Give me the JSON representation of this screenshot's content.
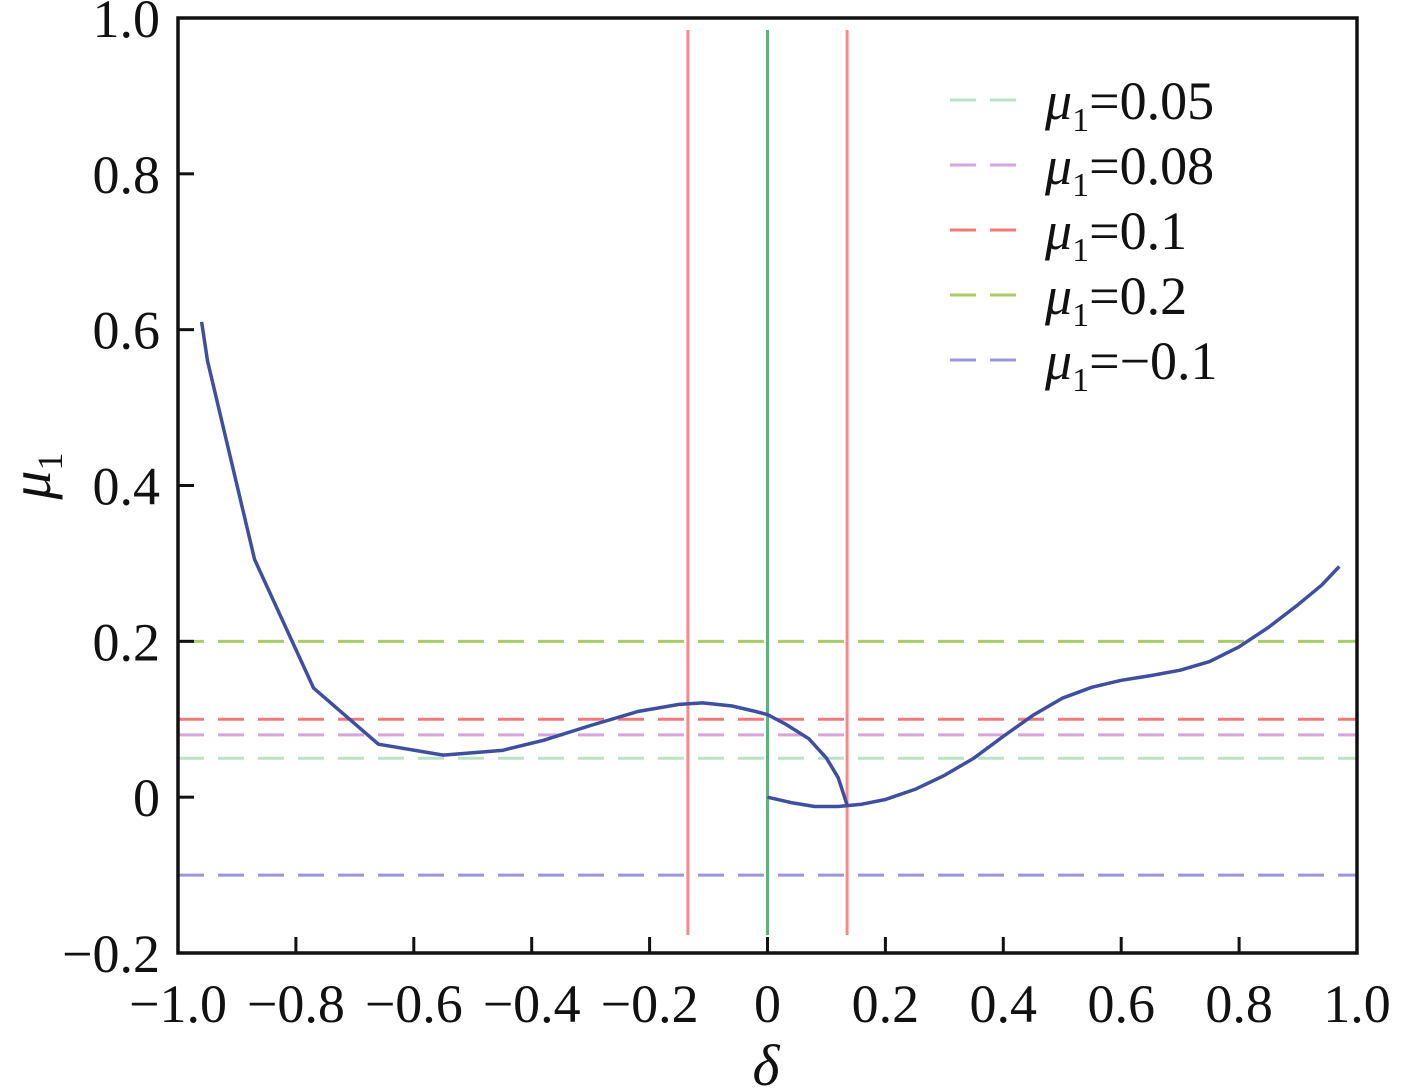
{
  "chart_data": {
    "type": "line",
    "xlabel": "δ",
    "ylabel": "μ",
    "ylabel_sub": "1",
    "xlim": [
      -1.0,
      1.0
    ],
    "ylim": [
      -0.2,
      1.0
    ],
    "xticks": [
      -1.0,
      -0.8,
      -0.6,
      -0.4,
      -0.2,
      0,
      0.2,
      0.4,
      0.6,
      0.8,
      1.0
    ],
    "xtick_labels": [
      "−1.0",
      "−0.8",
      "−0.6",
      "−0.4",
      "−0.2",
      "0",
      "0.2",
      "0.4",
      "0.6",
      "0.8",
      "1.0"
    ],
    "yticks": [
      -0.2,
      0,
      0.2,
      0.4,
      0.6,
      0.8,
      1.0
    ],
    "ytick_labels": [
      "−0.2",
      "0",
      "0.2",
      "0.4",
      "0.6",
      "0.8",
      "1.0"
    ],
    "grid": false,
    "legend_placement": "top-right",
    "curve_color": "#3f4f9f",
    "curve": [
      [
        {
          "x": -0.96,
          "y": 0.61
        },
        {
          "x": -0.95,
          "y": 0.56
        },
        {
          "x": -0.87,
          "y": 0.305
        },
        {
          "x": -0.77,
          "y": 0.14
        },
        {
          "x": -0.66,
          "y": 0.068
        },
        {
          "x": -0.55,
          "y": 0.054
        },
        {
          "x": -0.45,
          "y": 0.06
        },
        {
          "x": -0.38,
          "y": 0.073
        },
        {
          "x": -0.3,
          "y": 0.092
        },
        {
          "x": -0.22,
          "y": 0.11
        },
        {
          "x": -0.15,
          "y": 0.119
        },
        {
          "x": -0.11,
          "y": 0.121
        },
        {
          "x": -0.06,
          "y": 0.117
        },
        {
          "x": -0.02,
          "y": 0.11
        },
        {
          "x": 0.0,
          "y": 0.106
        },
        {
          "x": 0.03,
          "y": 0.094
        },
        {
          "x": 0.07,
          "y": 0.075
        },
        {
          "x": 0.1,
          "y": 0.05
        },
        {
          "x": 0.12,
          "y": 0.025
        },
        {
          "x": 0.135,
          "y": -0.01
        }
      ],
      [
        {
          "x": 0.0,
          "y": 0.0
        },
        {
          "x": 0.04,
          "y": -0.007
        },
        {
          "x": 0.08,
          "y": -0.012
        },
        {
          "x": 0.12,
          "y": -0.012
        },
        {
          "x": 0.16,
          "y": -0.009
        },
        {
          "x": 0.2,
          "y": -0.003
        },
        {
          "x": 0.25,
          "y": 0.01
        },
        {
          "x": 0.3,
          "y": 0.028
        },
        {
          "x": 0.35,
          "y": 0.05
        },
        {
          "x": 0.4,
          "y": 0.078
        },
        {
          "x": 0.45,
          "y": 0.105
        },
        {
          "x": 0.5,
          "y": 0.127
        },
        {
          "x": 0.55,
          "y": 0.141
        },
        {
          "x": 0.6,
          "y": 0.15
        },
        {
          "x": 0.65,
          "y": 0.156
        },
        {
          "x": 0.7,
          "y": 0.163
        },
        {
          "x": 0.75,
          "y": 0.174
        },
        {
          "x": 0.8,
          "y": 0.193
        },
        {
          "x": 0.85,
          "y": 0.218
        },
        {
          "x": 0.9,
          "y": 0.247
        },
        {
          "x": 0.94,
          "y": 0.272
        },
        {
          "x": 0.97,
          "y": 0.296
        }
      ]
    ],
    "horizontal_lines": [
      {
        "y": 0.05,
        "color": "#b9e3c4"
      },
      {
        "y": 0.08,
        "color": "#d9a3db"
      },
      {
        "y": 0.1,
        "color": "#f07a7a"
      },
      {
        "y": 0.2,
        "color": "#a9cc66"
      },
      {
        "y": -0.1,
        "color": "#9b97dc"
      }
    ],
    "vertical_lines": [
      {
        "x": -0.135,
        "color": "#f58a8a"
      },
      {
        "x": 0.0,
        "color": "#5fb37a"
      },
      {
        "x": 0.135,
        "color": "#f58a8a"
      }
    ],
    "legend": [
      {
        "symbol": "μ",
        "sub": "1",
        "value": "=0.05",
        "color": "#b9e3c4"
      },
      {
        "symbol": "μ",
        "sub": "1",
        "value": "=0.08",
        "color": "#d9a3db"
      },
      {
        "symbol": "μ",
        "sub": "1",
        "value": "=0.1",
        "color": "#f07a7a"
      },
      {
        "symbol": "μ",
        "sub": "1",
        "value": "=0.2",
        "color": "#a9cc66"
      },
      {
        "symbol": "μ",
        "sub": "1",
        "value": "=−0.1",
        "color": "#9b97dc"
      }
    ]
  }
}
